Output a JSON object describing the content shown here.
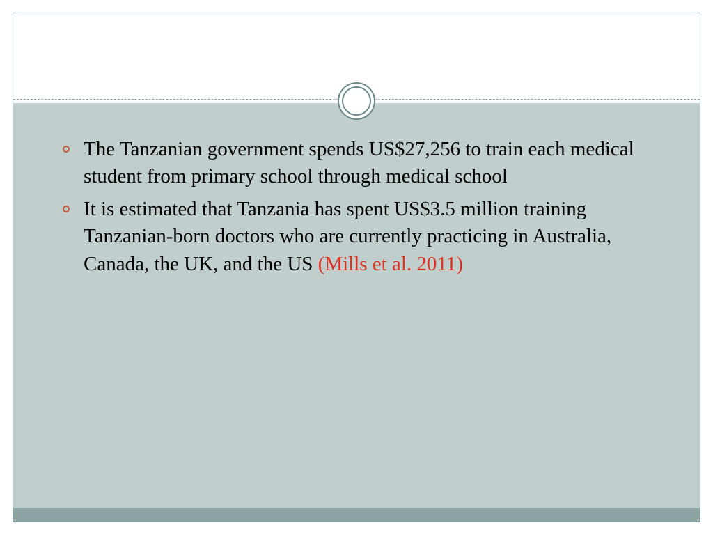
{
  "slide": {
    "background_color": "#ffffff",
    "content_background": "#c0cece",
    "bottom_bar_color": "#8ba3a2",
    "border_color": "#7a9998",
    "divider_color": "#8a9f9e",
    "ornament_ring_color": "#6b8a89",
    "bullet_marker_color": "#c05a3a",
    "text_color": "#000000",
    "citation_color": "#e03020",
    "font_family": "Georgia",
    "body_fontsize": 29,
    "bullets": [
      {
        "text": "The Tanzanian government spends US$27,256 to train each medical student from primary school through medical school",
        "citation": ""
      },
      {
        "text": " It is estimated that Tanzania has spent US$3.5 million training Tanzanian-born doctors who are currently practicing in Australia, Canada, the UK, and  the US ",
        "citation": "(Mills et al. 2011)"
      }
    ]
  }
}
